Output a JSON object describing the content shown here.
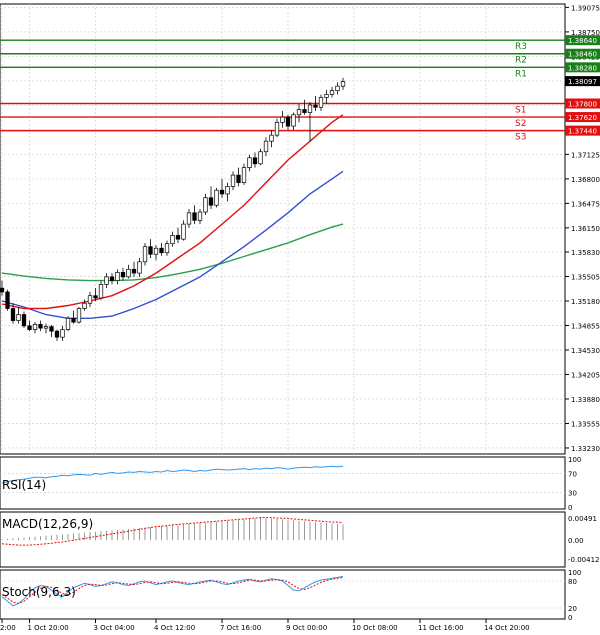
{
  "colors": {
    "background": "#ffffff",
    "grid": "#c8c8c8",
    "frame": "#000000",
    "candle_up": "#ffffff",
    "candle_down": "#000000",
    "bull_candle": "#2e7d32",
    "resistance": "#1a7f1a",
    "support": "#e01010",
    "ma_fast": "#e01010",
    "ma_mid": "#3050d0",
    "ma_slow": "#2aa04a",
    "rsi": "#3399ee",
    "macd_hist": "#999999",
    "macd_signal": "#e01010",
    "stoch_k": "#3399ee",
    "stoch_d": "#e01010",
    "price_label_bg": "#000000",
    "res_label_bg": "#1a7f1a",
    "sup_label_bg": "#e01010"
  },
  "chart_data": [
    {
      "type": "candlestick",
      "title": "",
      "ylim": [
        1.3315,
        1.3912
      ],
      "price_ticks": [
        1.39075,
        1.3875,
        1.38425,
        1.381,
        1.37775,
        1.3745,
        1.37125,
        1.368,
        1.36475,
        1.3615,
        1.3583,
        1.35505,
        1.3518,
        1.34855,
        1.3453,
        1.34205,
        1.3388,
        1.33555,
        1.3323
      ],
      "price_tick_labels": [
        "1.39075",
        "1.38750",
        "1.38425",
        "1.38100",
        "1.37775",
        "1.37450",
        "1.37125",
        "1.36800",
        "1.36475",
        "1.36150",
        "1.35830",
        "1.35505",
        "1.35180",
        "1.34855",
        "1.34530",
        "1.34205",
        "1.33880",
        "1.33555",
        "1.33230"
      ],
      "x_labels": [
        "2:00",
        "1 Oct 20:00",
        "3 Oct 04:00",
        "4 Oct 12:00",
        "7 Oct 16:00",
        "9 Oct 00:00",
        "10 Oct 08:00",
        "11 Oct 16:00",
        "14 Oct 20:00"
      ],
      "x_label_bars": [
        0,
        5,
        17,
        28,
        40,
        52,
        64,
        76,
        88
      ],
      "current_price": {
        "value": 1.38097,
        "label": "1.38097"
      },
      "resistance_levels": [
        {
          "name": "R1",
          "value": 1.3828,
          "label": "1.38280"
        },
        {
          "name": "R2",
          "value": 1.3846,
          "label": "1.38460"
        },
        {
          "name": "R3",
          "value": 1.3864,
          "label": "1.38640"
        }
      ],
      "support_levels": [
        {
          "name": "S1",
          "value": 1.378,
          "label": "1.37800"
        },
        {
          "name": "S2",
          "value": 1.3762,
          "label": "1.37620"
        },
        {
          "name": "S3",
          "value": 1.3744,
          "label": "1.37440"
        }
      ],
      "candles": [
        [
          1.3535,
          1.3545,
          1.3525,
          1.353
        ],
        [
          1.353,
          1.3533,
          1.3505,
          1.3508
        ],
        [
          1.3508,
          1.3515,
          1.3488,
          1.3492
        ],
        [
          1.3492,
          1.351,
          1.3488,
          1.35
        ],
        [
          1.35,
          1.3504,
          1.3482,
          1.3485
        ],
        [
          1.3485,
          1.3492,
          1.3478,
          1.348
        ],
        [
          1.348,
          1.349,
          1.3475,
          1.3487
        ],
        [
          1.3487,
          1.3492,
          1.3478,
          1.3482
        ],
        [
          1.3482,
          1.3488,
          1.3475,
          1.3484
        ],
        [
          1.3484,
          1.3486,
          1.347,
          1.3478
        ],
        [
          1.3478,
          1.348,
          1.3465,
          1.347
        ],
        [
          1.347,
          1.3485,
          1.3465,
          1.348
        ],
        [
          1.348,
          1.3498,
          1.3478,
          1.3495
        ],
        [
          1.3495,
          1.3505,
          1.3488,
          1.349
        ],
        [
          1.349,
          1.351,
          1.3488,
          1.3508
        ],
        [
          1.3508,
          1.352,
          1.3505,
          1.3515
        ],
        [
          1.3515,
          1.353,
          1.351,
          1.3525
        ],
        [
          1.3525,
          1.3535,
          1.3518,
          1.3522
        ],
        [
          1.3522,
          1.3545,
          1.352,
          1.354
        ],
        [
          1.354,
          1.3555,
          1.3535,
          1.355
        ],
        [
          1.355,
          1.3555,
          1.354,
          1.3545
        ],
        [
          1.3545,
          1.356,
          1.354,
          1.3556
        ],
        [
          1.3556,
          1.3562,
          1.3545,
          1.355
        ],
        [
          1.355,
          1.3566,
          1.3548,
          1.356
        ],
        [
          1.356,
          1.357,
          1.355,
          1.3555
        ],
        [
          1.3555,
          1.3575,
          1.355,
          1.357
        ],
        [
          1.357,
          1.3595,
          1.3565,
          1.359
        ],
        [
          1.359,
          1.36,
          1.3575,
          1.358
        ],
        [
          1.358,
          1.3592,
          1.3572,
          1.3588
        ],
        [
          1.3588,
          1.3595,
          1.3578,
          1.3582
        ],
        [
          1.3582,
          1.3598,
          1.3578,
          1.3594
        ],
        [
          1.3594,
          1.361,
          1.359,
          1.3605
        ],
        [
          1.3605,
          1.3615,
          1.3595,
          1.36
        ],
        [
          1.36,
          1.3625,
          1.3598,
          1.362
        ],
        [
          1.362,
          1.364,
          1.3615,
          1.3635
        ],
        [
          1.3635,
          1.3645,
          1.362,
          1.3625
        ],
        [
          1.3625,
          1.364,
          1.362,
          1.3636
        ],
        [
          1.3636,
          1.366,
          1.3632,
          1.3655
        ],
        [
          1.3655,
          1.367,
          1.364,
          1.3645
        ],
        [
          1.3645,
          1.3668,
          1.3642,
          1.3665
        ],
        [
          1.3665,
          1.368,
          1.3655,
          1.366
        ],
        [
          1.366,
          1.3675,
          1.365,
          1.367
        ],
        [
          1.367,
          1.369,
          1.3665,
          1.3685
        ],
        [
          1.3685,
          1.3695,
          1.367,
          1.3675
        ],
        [
          1.3675,
          1.37,
          1.3672,
          1.3695
        ],
        [
          1.3695,
          1.3712,
          1.369,
          1.3708
        ],
        [
          1.3708,
          1.3715,
          1.3695,
          1.37
        ],
        [
          1.37,
          1.372,
          1.3698,
          1.3716
        ],
        [
          1.3716,
          1.3735,
          1.371,
          1.373
        ],
        [
          1.373,
          1.3745,
          1.3722,
          1.3738
        ],
        [
          1.3738,
          1.376,
          1.3735,
          1.3755
        ],
        [
          1.3755,
          1.377,
          1.3748,
          1.3762
        ],
        [
          1.3762,
          1.3765,
          1.3745,
          1.375
        ],
        [
          1.375,
          1.3768,
          1.3745,
          1.3765
        ],
        [
          1.3765,
          1.378,
          1.3755,
          1.3772
        ],
        [
          1.3772,
          1.3785,
          1.3765,
          1.3768
        ],
        [
          1.3768,
          1.3782,
          1.373,
          1.3778
        ],
        [
          1.3778,
          1.379,
          1.377,
          1.3775
        ],
        [
          1.3775,
          1.3792,
          1.377,
          1.3788
        ],
        [
          1.3788,
          1.3798,
          1.378,
          1.3792
        ],
        [
          1.3792,
          1.3802,
          1.3788,
          1.3797
        ],
        [
          1.3797,
          1.3808,
          1.3792,
          1.3803
        ],
        [
          1.3803,
          1.3814,
          1.3798,
          1.3809
        ]
      ],
      "ma_fast": [
        [
          0,
          1.3514
        ],
        [
          4,
          1.3508
        ],
        [
          8,
          1.3508
        ],
        [
          12,
          1.3512
        ],
        [
          16,
          1.3518
        ],
        [
          20,
          1.3525
        ],
        [
          24,
          1.3538
        ],
        [
          28,
          1.3555
        ],
        [
          32,
          1.3575
        ],
        [
          36,
          1.3595
        ],
        [
          40,
          1.362
        ],
        [
          44,
          1.3645
        ],
        [
          48,
          1.3675
        ],
        [
          52,
          1.3705
        ],
        [
          56,
          1.373
        ],
        [
          60,
          1.3755
        ],
        [
          62,
          1.3765
        ]
      ],
      "ma_mid": [
        [
          0,
          1.3518
        ],
        [
          4,
          1.351
        ],
        [
          8,
          1.35
        ],
        [
          12,
          1.3495
        ],
        [
          16,
          1.3495
        ],
        [
          20,
          1.3498
        ],
        [
          24,
          1.3508
        ],
        [
          28,
          1.352
        ],
        [
          32,
          1.3535
        ],
        [
          36,
          1.355
        ],
        [
          40,
          1.357
        ],
        [
          44,
          1.359
        ],
        [
          48,
          1.3612
        ],
        [
          52,
          1.3635
        ],
        [
          56,
          1.366
        ],
        [
          60,
          1.368
        ],
        [
          62,
          1.369
        ]
      ],
      "ma_slow": [
        [
          0,
          1.3555
        ],
        [
          4,
          1.3551
        ],
        [
          8,
          1.3548
        ],
        [
          12,
          1.3546
        ],
        [
          16,
          1.3545
        ],
        [
          20,
          1.3545
        ],
        [
          24,
          1.3546
        ],
        [
          28,
          1.3549
        ],
        [
          32,
          1.3554
        ],
        [
          36,
          1.356
        ],
        [
          40,
          1.3568
        ],
        [
          44,
          1.3577
        ],
        [
          48,
          1.3586
        ],
        [
          52,
          1.3595
        ],
        [
          56,
          1.3606
        ],
        [
          60,
          1.3616
        ],
        [
          62,
          1.362
        ]
      ]
    },
    {
      "type": "line",
      "title": "RSI(14)",
      "ylim": [
        0,
        100
      ],
      "tick_labels": [
        "100",
        "70",
        "30",
        "0"
      ],
      "ticks": [
        100,
        70,
        30,
        0
      ],
      "values": [
        50,
        53,
        55,
        57,
        58,
        60,
        62,
        62,
        61,
        63,
        64,
        66,
        65,
        67,
        68,
        67,
        66,
        70,
        68,
        70,
        72,
        70,
        71,
        73,
        72,
        74,
        73,
        72,
        74,
        73,
        76,
        74,
        75,
        77,
        76,
        74,
        76,
        75,
        77,
        79,
        78,
        77,
        78,
        79,
        80,
        78,
        80,
        79,
        81,
        80,
        82,
        81,
        79,
        81,
        82,
        83,
        82,
        84,
        83,
        84,
        85,
        84,
        85
      ]
    },
    {
      "type": "bar",
      "title": "MACD(12,26,9)",
      "ylim": [
        -0.0055,
        0.0058
      ],
      "tick_labels": [
        "0.00491",
        "0.00",
        "-0.00412"
      ],
      "ticks": [
        0.00491,
        0.0,
        -0.00412
      ],
      "histogram": [
        0.0002,
        0.0003,
        0.0004,
        0.0005,
        0.0006,
        0.0007,
        0.0008,
        0.0009,
        0.001,
        0.0011,
        0.0012,
        0.0013,
        0.0014,
        0.0015,
        0.0016,
        0.0017,
        0.0018,
        0.0019,
        0.002,
        0.0021,
        0.0022,
        0.0023,
        0.0024,
        0.0025,
        0.0026,
        0.0027,
        0.0028,
        0.0029,
        0.003,
        0.0031,
        0.0032,
        0.0033,
        0.0034,
        0.0035,
        0.0036,
        0.0037,
        0.0038,
        0.0039,
        0.004,
        0.0041,
        0.0042,
        0.0043,
        0.0044,
        0.0045,
        0.0046,
        0.0047,
        0.0048,
        0.0049,
        0.0049,
        0.0048,
        0.0047,
        0.0046,
        0.0045,
        0.0044,
        0.0043,
        0.0042,
        0.0041,
        0.004,
        0.0039,
        0.0038,
        0.0037,
        0.0036,
        0.0035
      ],
      "signal": [
        -0.0008,
        -0.0009,
        -0.001,
        -0.0011,
        -0.0011,
        -0.0011,
        -0.001,
        -0.0009,
        -0.0008,
        -0.0007,
        -0.0005,
        -0.0004,
        -0.0002,
        0.0,
        0.0002,
        0.0004,
        0.0006,
        0.0008,
        0.001,
        0.0012,
        0.0014,
        0.0016,
        0.0018,
        0.002,
        0.0022,
        0.0024,
        0.0026,
        0.0028,
        0.003,
        0.0031,
        0.0032,
        0.0034,
        0.0035,
        0.0036,
        0.0037,
        0.0038,
        0.0039,
        0.004,
        0.0041,
        0.0042,
        0.0043,
        0.0044,
        0.0045,
        0.0046,
        0.0047,
        0.0048,
        0.0049,
        0.005,
        0.005,
        0.005,
        0.0049,
        0.0049,
        0.0048,
        0.0047,
        0.0046,
        0.0045,
        0.0044,
        0.0043,
        0.0042,
        0.0041,
        0.004,
        0.004,
        0.0039
      ]
    },
    {
      "type": "line",
      "title": "Stoch(9,6,3)",
      "ylim": [
        0,
        100
      ],
      "tick_labels": [
        "100",
        "80",
        "20",
        "0"
      ],
      "ticks": [
        100,
        80,
        20,
        0
      ],
      "k": [
        45,
        35,
        25,
        30,
        40,
        55,
        65,
        70,
        68,
        60,
        50,
        45,
        55,
        65,
        70,
        75,
        72,
        68,
        70,
        74,
        78,
        76,
        72,
        70,
        74,
        78,
        80,
        76,
        72,
        75,
        78,
        80,
        77,
        74,
        72,
        75,
        78,
        80,
        82,
        78,
        74,
        72,
        76,
        80,
        82,
        84,
        80,
        78,
        82,
        85,
        83,
        80,
        70,
        60,
        58,
        65,
        72,
        78,
        82,
        84,
        86,
        88,
        90
      ],
      "d": [
        50,
        42,
        33,
        30,
        35,
        45,
        55,
        64,
        68,
        66,
        60,
        52,
        50,
        55,
        63,
        70,
        73,
        72,
        70,
        71,
        74,
        76,
        75,
        73,
        72,
        74,
        77,
        78,
        76,
        74,
        75,
        77,
        78,
        77,
        75,
        74,
        75,
        78,
        80,
        80,
        78,
        75,
        74,
        76,
        79,
        82,
        82,
        80,
        80,
        82,
        83,
        82,
        78,
        70,
        63,
        61,
        65,
        71,
        77,
        81,
        84,
        86,
        88
      ]
    }
  ]
}
